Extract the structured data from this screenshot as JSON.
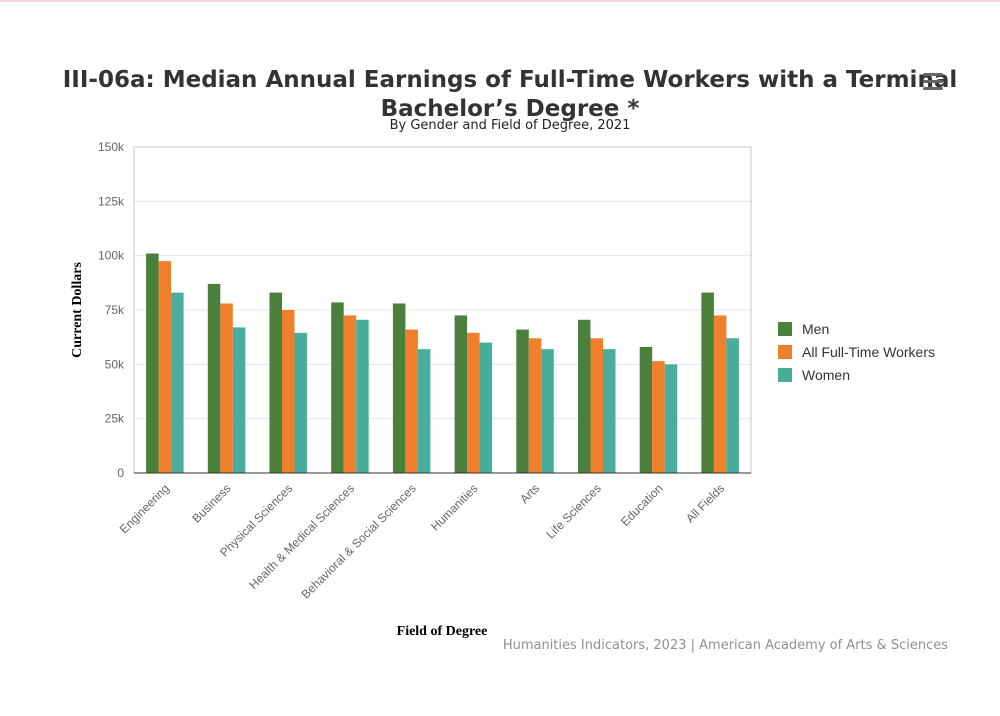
{
  "chart_data": {
    "type": "bar",
    "title": "III-06a: Median Annual Earnings of Full-Time Workers with a Terminal Bachelor’s Degree *",
    "subtitle": "By Gender and Field of Degree, 2021",
    "xlabel": "Field of Degree",
    "ylabel": "Current Dollars",
    "ylim": [
      0,
      150000
    ],
    "yticks": [
      0,
      25000,
      50000,
      75000,
      100000,
      125000,
      150000
    ],
    "ytick_labels": [
      "0",
      "25k",
      "50k",
      "75k",
      "100k",
      "125k",
      "150k"
    ],
    "grid": true,
    "legend_position": "right",
    "categories": [
      "Engineering",
      "Business",
      "Physical Sciences",
      "Health & Medical Sciences",
      "Behavioral & Social Sciences",
      "Humanities",
      "Arts",
      "Life Sciences",
      "Education",
      "All Fields"
    ],
    "series": [
      {
        "name": "Men",
        "color": "#4a7f3c",
        "values": [
          101000,
          87000,
          83000,
          78500,
          78000,
          72500,
          66000,
          70500,
          58000,
          83000
        ]
      },
      {
        "name": "All Full-Time Workers",
        "color": "#f0802b",
        "values": [
          97500,
          78000,
          75000,
          72500,
          66000,
          64500,
          62000,
          62000,
          51500,
          72500
        ]
      },
      {
        "name": "Women",
        "color": "#48ae9b",
        "values": [
          83000,
          67000,
          64500,
          70500,
          57000,
          60000,
          57000,
          57000,
          50000,
          62000
        ]
      }
    ]
  },
  "credit": "Humanities Indicators, 2023 | American Academy of Arts & Sciences",
  "menu_icon": "hamburger-menu-icon"
}
